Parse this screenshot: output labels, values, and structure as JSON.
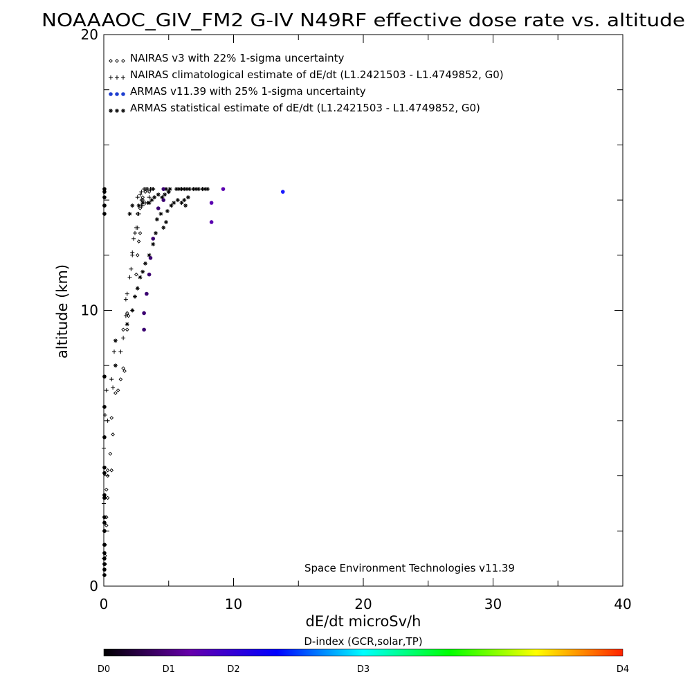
{
  "chart_data": {
    "type": "scatter",
    "title": "NOAAAOC_GIV_FM2 G-IV   N49RF  effective dose rate vs. altitude",
    "xlabel": "dE/dt microSv/h",
    "ylabel": "altitude (km)",
    "xlim": [
      0,
      40
    ],
    "ylim": [
      0,
      20
    ],
    "x_ticks": [
      0,
      10,
      20,
      30,
      40
    ],
    "y_ticks": [
      0,
      10,
      20
    ],
    "credit": "Space Environment Technologies v11.39",
    "legend_position": "top-left",
    "legend": [
      {
        "label": "NAIRAS v3 with 22% 1-sigma uncertainty",
        "marker": "diamond"
      },
      {
        "label": "NAIRAS climatological estimate of dE/dt (L1.2421503 - L1.4749852, G0)",
        "marker": "plus"
      },
      {
        "label": "ARMAS v11.39 with 25% 1-sigma uncertainty",
        "marker": "dot"
      },
      {
        "label": "ARMAS statistical estimate of dE/dt (L1.2421503 - L1.4749852, G0)",
        "marker": "asterisk"
      }
    ],
    "colorbar": {
      "title": "D-index (GCR,solar,TP)",
      "labels": [
        {
          "text": "D0",
          "value": 0
        },
        {
          "text": "D1",
          "value": 0.125
        },
        {
          "text": "D2",
          "value": 0.25
        },
        {
          "text": "D3",
          "value": 0.5
        },
        {
          "text": "D4",
          "value": 1.0
        }
      ],
      "stops": [
        "#000000",
        "#6600aa",
        "#0000ff",
        "#00ffff",
        "#00ff00",
        "#ffff00",
        "#ff2200"
      ]
    },
    "series": [
      {
        "name": "NAIRAS v3 with 22% 1-sigma uncertainty",
        "marker": "diamond",
        "color": "#000000",
        "x": [
          0.1,
          0.1,
          0.1,
          0.2,
          0.2,
          0.3,
          0.2,
          0.3,
          0.3,
          0.5,
          0.6,
          0.7,
          0.6,
          0.9,
          1.1,
          1.3,
          1.5,
          1.6,
          1.5,
          1.8,
          1.8,
          1.9,
          2.5,
          2.6,
          2.7,
          2.6,
          2.8,
          2.9,
          3.0,
          3.2,
          3.5,
          3.8,
          2.8,
          3.0,
          3.4
        ],
        "y": [
          0.8,
          1.1,
          1.5,
          2.2,
          2.5,
          3.2,
          3.5,
          4.0,
          4.2,
          4.8,
          4.2,
          5.5,
          6.1,
          7.0,
          7.1,
          7.5,
          7.9,
          7.8,
          9.3,
          9.3,
          9.9,
          9.8,
          11.3,
          12.0,
          12.5,
          13.5,
          13.7,
          14.0,
          14.1,
          14.3,
          14.3,
          14.4,
          12.8,
          14.0,
          13.9
        ]
      },
      {
        "name": "NAIRAS climatological estimate of dE/dt (L1.2421503 - L1.4749852, G0)",
        "marker": "plus",
        "color": "#000000",
        "x": [
          0.0,
          0.0,
          0.0,
          0.1,
          0.2,
          0.3,
          0.6,
          0.7,
          0.8,
          1.3,
          1.5,
          1.7,
          1.7,
          1.8,
          2.0,
          2.1,
          2.2,
          2.3,
          2.5,
          2.7,
          2.9,
          3.0,
          3.2,
          3.4,
          3.5,
          3.7,
          2.6,
          2.8,
          2.9,
          3.1,
          3.2,
          3.3,
          3.4,
          3.6,
          3.8,
          2.2,
          2.4,
          2.6
        ],
        "y": [
          1.0,
          3.0,
          5.0,
          6.2,
          7.1,
          6.0,
          7.5,
          7.2,
          8.5,
          8.5,
          9.0,
          9.8,
          10.4,
          10.6,
          11.2,
          11.5,
          12.0,
          12.6,
          13.0,
          13.5,
          13.8,
          13.8,
          13.9,
          13.9,
          14.1,
          14.4,
          14.1,
          14.2,
          14.3,
          14.4,
          14.4,
          14.4,
          14.4,
          14.4,
          14.4,
          12.1,
          12.8,
          13.0
        ]
      },
      {
        "name": "ARMAS statistical estimate of dE/dt (L1.2421503 - L1.4749852, G0)",
        "marker": "asterisk",
        "color": "#000000",
        "x": [
          0.9,
          0.9,
          1.8,
          2.2,
          2.4,
          2.6,
          2.8,
          3.0,
          3.2,
          3.5,
          3.8,
          4.0,
          4.1,
          4.4,
          4.6,
          4.8,
          4.9,
          5.1,
          5.6,
          5.8,
          6.0,
          6.2,
          6.4,
          6.6,
          6.9,
          7.1,
          7.3,
          7.6,
          7.8,
          8.0,
          4.5,
          4.7,
          5.0,
          5.2,
          5.4,
          5.7,
          6.0,
          6.3,
          6.2,
          6.5,
          4.8,
          5.0,
          2.0,
          2.2,
          2.7,
          3.0,
          3.5,
          3.7,
          3.9,
          4.2
        ],
        "y": [
          8.9,
          8.0,
          9.5,
          10.0,
          10.5,
          10.8,
          11.2,
          11.4,
          11.7,
          12.0,
          12.4,
          12.8,
          13.3,
          13.5,
          13.0,
          13.2,
          13.6,
          14.4,
          14.4,
          14.4,
          14.4,
          14.4,
          14.4,
          14.4,
          14.4,
          14.4,
          14.4,
          14.4,
          14.4,
          14.4,
          14.1,
          14.2,
          14.3,
          13.8,
          13.9,
          14.0,
          13.9,
          13.8,
          14.0,
          14.1,
          14.4,
          14.3,
          13.5,
          13.8,
          13.8,
          13.9,
          13.9,
          14.0,
          14.1,
          14.2
        ]
      },
      {
        "name": "ARMAS v11.39 with 25% 1-sigma uncertainty",
        "marker": "dot",
        "color": "#5500aa",
        "x": [
          0.05,
          0.05,
          0.05,
          0.05,
          0.05,
          0.05,
          0.05,
          0.05,
          0.05,
          0.05,
          0.05,
          0.05,
          0.05,
          0.05,
          0.05,
          0.05,
          0.05,
          0.05,
          0.05,
          0.05,
          0.05,
          0.05,
          3.1,
          3.1,
          3.3,
          3.5,
          3.6,
          3.8,
          4.2,
          4.6,
          4.6,
          8.3,
          8.3,
          9.2,
          13.8
        ],
        "y": [
          0.4,
          0.6,
          0.8,
          1.0,
          1.2,
          1.5,
          2.0,
          2.3,
          2.5,
          3.2,
          3.3,
          4.1,
          4.3,
          5.4,
          6.5,
          7.6,
          13.5,
          13.8,
          14.1,
          14.4,
          14.3,
          13.8,
          9.3,
          9.9,
          10.6,
          11.3,
          11.9,
          12.6,
          13.7,
          14.0,
          14.4,
          13.2,
          13.9,
          14.4,
          14.3
        ]
      }
    ]
  }
}
